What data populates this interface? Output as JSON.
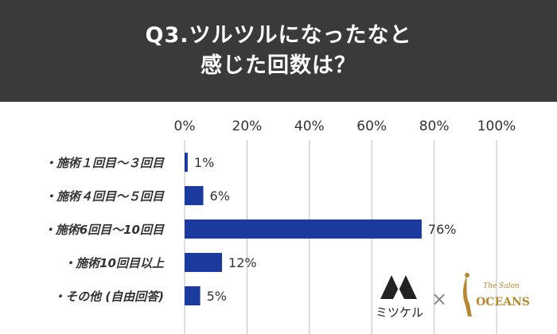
{
  "header": {
    "title_line1": "Q3.ツルツルになったなと",
    "title_line2": "感じた回数は？"
  },
  "chart_data": {
    "type": "bar",
    "orientation": "horizontal",
    "categories": [
      "・施術１回目～３回目",
      "・施術４回目～５回目",
      "・施術6回目～10回目",
      "・施術10回目以上",
      "・その他 (自由回答)"
    ],
    "values": [
      1,
      6,
      76,
      12,
      5
    ],
    "value_labels": [
      "1%",
      "6%",
      "76%",
      "12%",
      "5%"
    ],
    "xlim": [
      0,
      100
    ],
    "xticks": [
      0,
      20,
      40,
      60,
      80,
      100
    ],
    "xtick_labels": [
      "0%",
      "20%",
      "40%",
      "60%",
      "80%",
      "100%"
    ],
    "grid": true,
    "bar_color": "#1a3a9e"
  },
  "logos": {
    "mitsukeru_text": "ミツケル",
    "separator": "×",
    "oceans_script": "The Salon",
    "oceans_text": "OCEANS",
    "oceans_color": "#b8892e"
  }
}
